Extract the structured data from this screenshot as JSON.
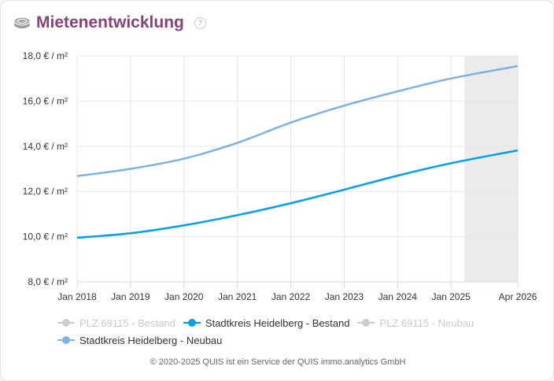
{
  "title": "Mietenentwicklung",
  "help_icon": "?",
  "footer": "© 2020-2025 QUIS ist ein Service der QUIS immo.analytics GmbH",
  "legend": [
    {
      "label": "PLZ 69115 - Bestand",
      "color": "#cccccc",
      "active": false
    },
    {
      "label": "Stadtkreis Heidelberg - Bestand",
      "color": "#00a0f0",
      "active": true
    },
    {
      "label": "PLZ 69115 - Neubau",
      "color": "#cccccc",
      "active": false
    },
    {
      "label": "Stadtkreis Heidelberg - Neubau",
      "color": "#7db0e4",
      "active": true
    }
  ],
  "chart_data": {
    "type": "line",
    "title": "Mietenentwicklung",
    "xlabel": "",
    "ylabel": "",
    "ylim": [
      8,
      18
    ],
    "xlim": [
      2018.0,
      2026.25
    ],
    "y_ticks": [
      "8,0 € / m²",
      "10,0 € / m²",
      "12,0 € / m²",
      "14,0 € / m²",
      "16,0 € / m²",
      "18,0 € / m²"
    ],
    "x_ticks": [
      "Jan 2018",
      "Jan 2019",
      "Jan 2020",
      "Jan 2021",
      "Jan 2022",
      "Jan 2023",
      "Jan 2024",
      "Jan 2025",
      "Apr 2026"
    ],
    "forecast_band": [
      2025.25,
      2026.25
    ],
    "x": [
      2018,
      2019,
      2020,
      2021,
      2022,
      2023,
      2024,
      2025,
      2026.25
    ],
    "series": [
      {
        "name": "Stadtkreis Heidelberg - Bestand",
        "color": "#00a0f0",
        "values": [
          9.95,
          10.15,
          10.5,
          10.95,
          11.48,
          12.08,
          12.7,
          13.25,
          13.82
        ]
      },
      {
        "name": "Stadtkreis Heidelberg - Neubau",
        "color": "#7db0e4",
        "values": [
          12.68,
          13.0,
          13.45,
          14.15,
          15.05,
          15.8,
          16.43,
          17.0,
          17.55
        ]
      }
    ]
  }
}
